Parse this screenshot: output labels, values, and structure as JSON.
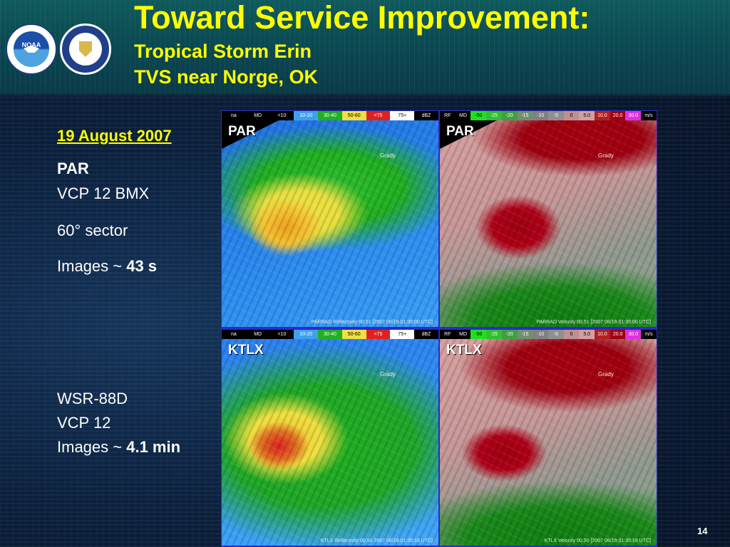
{
  "header": {
    "title": "Toward Service Improvement:",
    "subtitle_line1": "Tropical Storm Erin",
    "subtitle_line2": "TVS near Norge, OK",
    "logos": [
      {
        "name": "noaa-logo",
        "text": "NOAA"
      },
      {
        "name": "department-of-commerce-seal"
      }
    ]
  },
  "sidebar": {
    "date": "19 August 2007",
    "par_heading": "PAR",
    "par_vcp": "VCP 12 BMX",
    "par_sector": "60° sector",
    "par_images_prefix": "Images ~ ",
    "par_images_value": "43 s",
    "wsr_heading": "WSR-88D",
    "wsr_vcp": "VCP 12",
    "wsr_images_prefix": "Images ~ ",
    "wsr_images_value": "4.1 min"
  },
  "colors": {
    "title": "#ffff00",
    "panel_border": "#2a2ad0"
  },
  "panels": {
    "refl_scale": [
      {
        "label": "na",
        "color": "#000000"
      },
      {
        "label": "MD",
        "color": "#000000"
      },
      {
        "label": "<10",
        "color": "#000000"
      },
      {
        "label": "10-20",
        "color": "#40a0f0"
      },
      {
        "label": "30-40",
        "color": "#20b020"
      },
      {
        "label": "50-60",
        "color": "#f0e040"
      },
      {
        "label": "<75",
        "color": "#e02020"
      },
      {
        "label": "75+",
        "color": "#ffffff"
      },
      {
        "label": "dBZ",
        "color": "#000000"
      }
    ],
    "vel_scale": [
      {
        "label": "RF",
        "color": "#000000"
      },
      {
        "label": "MD",
        "color": "#000000"
      },
      {
        "label": "-50",
        "color": "#20e020"
      },
      {
        "label": "-25",
        "color": "#30c030"
      },
      {
        "label": "-20",
        "color": "#40a040"
      },
      {
        "label": "-15",
        "color": "#709070"
      },
      {
        "label": "-10",
        "color": "#808080"
      },
      {
        "label": "-5",
        "color": "#909090"
      },
      {
        "label": "0",
        "color": "#c09090"
      },
      {
        "label": "5.0",
        "color": "#d0a0a0"
      },
      {
        "label": "10.0",
        "color": "#b02020"
      },
      {
        "label": "20.0",
        "color": "#a00010"
      },
      {
        "label": "30.0",
        "color": "#e030e0"
      },
      {
        "label": "m/s",
        "color": "#000000"
      }
    ],
    "par_refl": {
      "label": "PAR",
      "place": "Grady",
      "caption": "PARRAD Reflectivity 00.51 [2007 08/19 01:35:00 UTC]"
    },
    "par_vel": {
      "label": "PAR",
      "place": "Grady",
      "caption": "PARRAD Velocity 00.51 [2007 08/19 01:35:00 UTC]"
    },
    "ktlx_refl": {
      "label": "KTLX",
      "place": "Grady",
      "caption": "KTLX Reflectivity 00.50 2007 08/19 01:35:19 UTC]"
    },
    "ktlx_vel": {
      "label": "KTLX",
      "place": "Grady",
      "caption": "KTLX Velocity 00.50 [2007 08/19 01:35:19 UTC]"
    }
  },
  "page_number": "14"
}
